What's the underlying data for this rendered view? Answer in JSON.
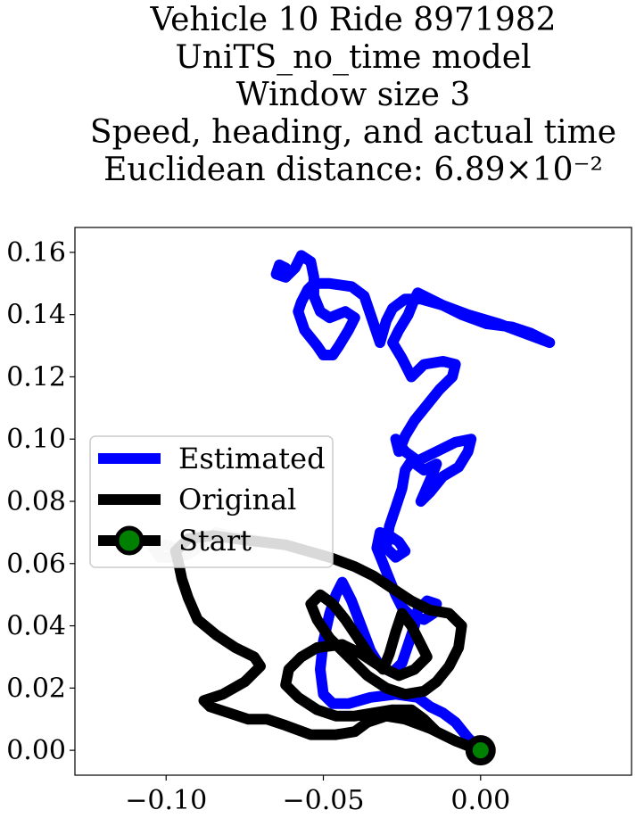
{
  "chart_data": {
    "type": "line",
    "title_lines": [
      "Vehicle 10 Ride 8971982",
      "UniTS_no_time model",
      "Window size 3",
      "Speed, heading, and actual time",
      "Euclidean distance: 6.89×10⁻²"
    ],
    "xlabel": "",
    "ylabel": "",
    "xlim": [
      -0.129,
      0.048
    ],
    "ylim": [
      -0.008,
      0.168
    ],
    "grid": false,
    "legend_position": "center-left",
    "xticks": [
      {
        "value": -0.1,
        "label": "−0.10"
      },
      {
        "value": -0.05,
        "label": "−0.05"
      },
      {
        "value": 0.0,
        "label": "0.00"
      }
    ],
    "yticks": [
      {
        "value": 0.0,
        "label": "0.00"
      },
      {
        "value": 0.02,
        "label": "0.02"
      },
      {
        "value": 0.04,
        "label": "0.04"
      },
      {
        "value": 0.06,
        "label": "0.06"
      },
      {
        "value": 0.08,
        "label": "0.08"
      },
      {
        "value": 0.1,
        "label": "0.10"
      },
      {
        "value": 0.12,
        "label": "0.12"
      },
      {
        "value": 0.14,
        "label": "0.14"
      },
      {
        "value": 0.16,
        "label": "0.16"
      }
    ],
    "series": [
      {
        "name": "Estimated",
        "color": "#0000ff",
        "points": [
          [
            0.0,
            0.0
          ],
          [
            -0.004,
            0.004
          ],
          [
            -0.008,
            0.009
          ],
          [
            -0.012,
            0.012
          ],
          [
            -0.016,
            0.014
          ],
          [
            -0.02,
            0.017
          ],
          [
            -0.027,
            0.018
          ],
          [
            -0.035,
            0.017
          ],
          [
            -0.042,
            0.015
          ],
          [
            -0.047,
            0.015
          ],
          [
            -0.05,
            0.018
          ],
          [
            -0.051,
            0.026
          ],
          [
            -0.05,
            0.035
          ],
          [
            -0.048,
            0.044
          ],
          [
            -0.046,
            0.05
          ],
          [
            -0.044,
            0.054
          ],
          [
            -0.041,
            0.048
          ],
          [
            -0.038,
            0.04
          ],
          [
            -0.035,
            0.032
          ],
          [
            -0.032,
            0.027
          ],
          [
            -0.028,
            0.025
          ],
          [
            -0.025,
            0.028
          ],
          [
            -0.023,
            0.034
          ],
          [
            -0.021,
            0.04
          ],
          [
            -0.02,
            0.045
          ],
          [
            -0.017,
            0.048
          ],
          [
            -0.014,
            0.047
          ],
          [
            -0.015,
            0.044
          ],
          [
            -0.018,
            0.042
          ],
          [
            -0.022,
            0.043
          ],
          [
            -0.025,
            0.046
          ],
          [
            -0.027,
            0.05
          ],
          [
            -0.029,
            0.055
          ],
          [
            -0.031,
            0.06
          ],
          [
            -0.033,
            0.065
          ],
          [
            -0.032,
            0.07
          ],
          [
            -0.029,
            0.069
          ],
          [
            -0.026,
            0.067
          ],
          [
            -0.024,
            0.064
          ],
          [
            -0.027,
            0.062
          ],
          [
            -0.03,
            0.065
          ],
          [
            -0.029,
            0.072
          ],
          [
            -0.027,
            0.078
          ],
          [
            -0.025,
            0.084
          ],
          [
            -0.024,
            0.09
          ],
          [
            -0.022,
            0.093
          ],
          [
            -0.018,
            0.09
          ],
          [
            -0.014,
            0.092
          ],
          [
            -0.016,
            0.087
          ],
          [
            -0.019,
            0.08
          ],
          [
            -0.016,
            0.083
          ],
          [
            -0.012,
            0.088
          ],
          [
            -0.007,
            0.091
          ],
          [
            -0.004,
            0.096
          ],
          [
            -0.003,
            0.1
          ],
          [
            -0.008,
            0.099
          ],
          [
            -0.014,
            0.096
          ],
          [
            -0.02,
            0.093
          ],
          [
            -0.024,
            0.096
          ],
          [
            -0.027,
            0.1
          ],
          [
            -0.026,
            0.096
          ],
          [
            -0.024,
            0.101
          ],
          [
            -0.021,
            0.106
          ],
          [
            -0.017,
            0.111
          ],
          [
            -0.013,
            0.116
          ],
          [
            -0.009,
            0.12
          ],
          [
            -0.008,
            0.124
          ],
          [
            -0.012,
            0.125
          ],
          [
            -0.018,
            0.124
          ],
          [
            -0.022,
            0.12
          ],
          [
            -0.025,
            0.126
          ],
          [
            -0.028,
            0.131
          ],
          [
            -0.026,
            0.135
          ],
          [
            -0.023,
            0.14
          ],
          [
            -0.021,
            0.145
          ],
          [
            -0.02,
            0.147
          ],
          [
            -0.014,
            0.144
          ],
          [
            -0.006,
            0.14
          ],
          [
            0.002,
            0.137
          ],
          [
            0.01,
            0.136
          ],
          [
            0.016,
            0.134
          ],
          [
            0.022,
            0.131
          ],
          [
            0.014,
            0.134
          ],
          [
            0.006,
            0.137
          ],
          [
            -0.004,
            0.14
          ],
          [
            -0.012,
            0.143
          ],
          [
            -0.019,
            0.145
          ],
          [
            -0.024,
            0.145
          ],
          [
            -0.028,
            0.142
          ],
          [
            -0.03,
            0.138
          ],
          [
            -0.032,
            0.131
          ],
          [
            -0.035,
            0.14
          ],
          [
            -0.037,
            0.146
          ],
          [
            -0.041,
            0.149
          ],
          [
            -0.048,
            0.15
          ],
          [
            -0.053,
            0.15
          ],
          [
            -0.055,
            0.148
          ],
          [
            -0.057,
            0.144
          ],
          [
            -0.058,
            0.141
          ],
          [
            -0.056,
            0.135
          ],
          [
            -0.052,
            0.13
          ],
          [
            -0.05,
            0.127
          ],
          [
            -0.047,
            0.127
          ],
          [
            -0.045,
            0.13
          ],
          [
            -0.042,
            0.135
          ],
          [
            -0.04,
            0.139
          ],
          [
            -0.043,
            0.141
          ],
          [
            -0.048,
            0.139
          ],
          [
            -0.051,
            0.141
          ],
          [
            -0.053,
            0.146
          ],
          [
            -0.053,
            0.152
          ],
          [
            -0.054,
            0.157
          ],
          [
            -0.057,
            0.159
          ],
          [
            -0.059,
            0.155
          ],
          [
            -0.062,
            0.152
          ],
          [
            -0.065,
            0.153
          ],
          [
            -0.064,
            0.156
          ],
          [
            -0.062,
            0.155
          ]
        ]
      },
      {
        "name": "Original",
        "color": "#000000",
        "points": [
          [
            0.0,
            0.0
          ],
          [
            -0.008,
            0.003
          ],
          [
            -0.016,
            0.007
          ],
          [
            -0.024,
            0.01
          ],
          [
            -0.03,
            0.011
          ],
          [
            -0.036,
            0.009
          ],
          [
            -0.04,
            0.006
          ],
          [
            -0.046,
            0.005
          ],
          [
            -0.054,
            0.005
          ],
          [
            -0.062,
            0.008
          ],
          [
            -0.068,
            0.01
          ],
          [
            -0.074,
            0.01
          ],
          [
            -0.08,
            0.012
          ],
          [
            -0.086,
            0.014
          ],
          [
            -0.088,
            0.016
          ],
          [
            -0.082,
            0.018
          ],
          [
            -0.075,
            0.022
          ],
          [
            -0.07,
            0.027
          ],
          [
            -0.072,
            0.03
          ],
          [
            -0.078,
            0.033
          ],
          [
            -0.084,
            0.037
          ],
          [
            -0.09,
            0.042
          ],
          [
            -0.093,
            0.049
          ],
          [
            -0.095,
            0.055
          ],
          [
            -0.096,
            0.06
          ],
          [
            -0.097,
            0.064
          ],
          [
            -0.093,
            0.068
          ],
          [
            -0.085,
            0.069
          ],
          [
            -0.078,
            0.068
          ],
          [
            -0.07,
            0.067
          ],
          [
            -0.062,
            0.066
          ],
          [
            -0.055,
            0.064
          ],
          [
            -0.048,
            0.062
          ],
          [
            -0.04,
            0.059
          ],
          [
            -0.034,
            0.056
          ],
          [
            -0.028,
            0.052
          ],
          [
            -0.022,
            0.048
          ],
          [
            -0.016,
            0.045
          ],
          [
            -0.01,
            0.044
          ],
          [
            -0.006,
            0.04
          ],
          [
            -0.007,
            0.033
          ],
          [
            -0.01,
            0.027
          ],
          [
            -0.014,
            0.022
          ],
          [
            -0.018,
            0.019
          ],
          [
            -0.024,
            0.018
          ],
          [
            -0.03,
            0.02
          ],
          [
            -0.036,
            0.024
          ],
          [
            -0.04,
            0.028
          ],
          [
            -0.044,
            0.032
          ],
          [
            -0.048,
            0.036
          ],
          [
            -0.052,
            0.042
          ],
          [
            -0.054,
            0.047
          ],
          [
            -0.051,
            0.05
          ],
          [
            -0.047,
            0.047
          ],
          [
            -0.043,
            0.042
          ],
          [
            -0.039,
            0.036
          ],
          [
            -0.035,
            0.03
          ],
          [
            -0.031,
            0.026
          ],
          [
            -0.029,
            0.031
          ],
          [
            -0.027,
            0.038
          ],
          [
            -0.025,
            0.044
          ],
          [
            -0.022,
            0.04
          ],
          [
            -0.019,
            0.034
          ],
          [
            -0.017,
            0.03
          ],
          [
            -0.021,
            0.026
          ],
          [
            -0.026,
            0.024
          ],
          [
            -0.032,
            0.027
          ],
          [
            -0.038,
            0.031
          ],
          [
            -0.044,
            0.034
          ],
          [
            -0.052,
            0.033
          ],
          [
            -0.057,
            0.03
          ],
          [
            -0.061,
            0.026
          ],
          [
            -0.062,
            0.021
          ],
          [
            -0.058,
            0.017
          ],
          [
            -0.052,
            0.013
          ],
          [
            -0.046,
            0.011
          ],
          [
            -0.04,
            0.011
          ],
          [
            -0.034,
            0.012
          ],
          [
            -0.028,
            0.013
          ],
          [
            -0.022,
            0.013
          ],
          [
            -0.018,
            0.01
          ],
          [
            -0.014,
            0.006
          ],
          [
            -0.008,
            0.003
          ],
          [
            -0.003,
            0.001
          ]
        ]
      },
      {
        "name": "",
        "color": "#cccccc",
        "points": [
          [
            -0.055,
            0.064
          ],
          [
            -0.062,
            0.066
          ],
          [
            -0.068,
            0.067
          ],
          [
            -0.074,
            0.068
          ],
          [
            -0.08,
            0.069
          ],
          [
            -0.084,
            0.07
          ],
          [
            -0.087,
            0.068
          ],
          [
            -0.09,
            0.065
          ],
          [
            -0.093,
            0.063
          ],
          [
            -0.097,
            0.062
          ],
          [
            -0.102,
            0.062
          ],
          [
            -0.104,
            0.065
          ],
          [
            -0.1,
            0.066
          ],
          [
            -0.097,
            0.065
          ]
        ]
      }
    ],
    "start_point": {
      "name": "Start",
      "x": 0.0,
      "y": 0.0,
      "fill": "#008000",
      "edge": "#000000"
    }
  }
}
